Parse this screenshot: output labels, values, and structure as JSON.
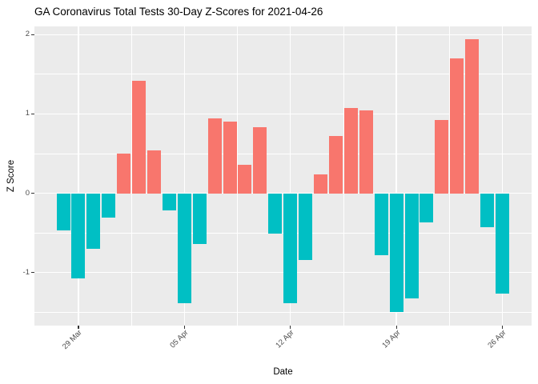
{
  "chart_data": {
    "type": "bar",
    "title": "GA Coronavirus Total Tests 30-Day Z-Scores for 2021-04-26",
    "xlabel": "Date",
    "ylabel": "Z Score",
    "dates": [
      "2021-03-28",
      "2021-03-29",
      "2021-03-30",
      "2021-03-31",
      "2021-04-01",
      "2021-04-02",
      "2021-04-03",
      "2021-04-04",
      "2021-04-05",
      "2021-04-06",
      "2021-04-07",
      "2021-04-08",
      "2021-04-09",
      "2021-04-10",
      "2021-04-11",
      "2021-04-12",
      "2021-04-13",
      "2021-04-14",
      "2021-04-15",
      "2021-04-16",
      "2021-04-17",
      "2021-04-18",
      "2021-04-19",
      "2021-04-20",
      "2021-04-21",
      "2021-04-22",
      "2021-04-23",
      "2021-04-24",
      "2021-04-25",
      "2021-04-26"
    ],
    "values": [
      -0.47,
      -1.07,
      -0.7,
      -0.31,
      0.5,
      1.42,
      0.54,
      -0.22,
      -1.39,
      -0.64,
      0.94,
      0.9,
      0.36,
      0.83,
      -0.51,
      -1.39,
      -0.84,
      0.24,
      0.72,
      1.08,
      1.05,
      -0.78,
      -1.5,
      -1.33,
      -0.37,
      0.92,
      1.7,
      1.94,
      -0.43,
      -1.26
    ],
    "x_tick_labels": [
      "29 Mar",
      "05 Apr",
      "12 Apr",
      "19 Apr",
      "26 Apr"
    ],
    "x_tick_indices": [
      1,
      8,
      15,
      22,
      29
    ],
    "y_tick_values": [
      2,
      1,
      0,
      -1
    ],
    "y_tick_labels": [
      "2",
      "1",
      "0",
      "-1"
    ],
    "y_minor_gridlines": [
      1.5,
      0.5,
      -0.5,
      -1.5
    ],
    "x_minor_indices": [
      4.5,
      11.5,
      18.5,
      25.5
    ],
    "ylim": [
      -1.668,
      2.104
    ],
    "grid": true,
    "legend_position": "none",
    "colors": {
      "positive_bar": "#F8766D",
      "negative_bar": "#00BFC4",
      "panel_background": "#EBEBEB",
      "gridline": "#FFFFFF",
      "tick_label": "#4D4D4D",
      "axis_title": "#000000",
      "title": "#000000",
      "tick_mark": "#333333"
    }
  }
}
